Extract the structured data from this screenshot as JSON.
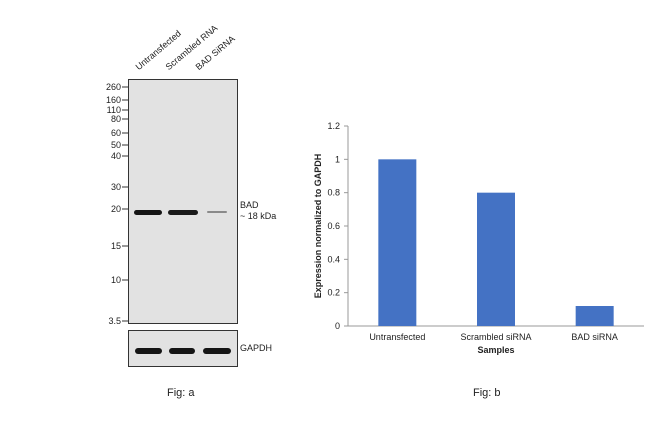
{
  "fig_a": {
    "caption": "Fig: a",
    "lanes": [
      "Untransfected",
      "Scrambled RNA",
      "BAD SiRNA"
    ],
    "markers": [
      "260",
      "160",
      "110",
      "80",
      "60",
      "50",
      "40",
      "30",
      "20",
      "15",
      "10",
      "3.5"
    ],
    "band_label_line1": "BAD",
    "band_label_line2": "~ 18 kDa",
    "control_label": "GAPDH",
    "band_intensity": [
      1.0,
      0.8,
      0.12
    ],
    "control_intensity": [
      1.0,
      1.0,
      1.0
    ]
  },
  "fig_b": {
    "caption": "Fig: b"
  },
  "chart_data": {
    "type": "bar",
    "categories": [
      "Untransfected",
      "Scrambled siRNA",
      "BAD siRNA"
    ],
    "values": [
      1.0,
      0.8,
      0.12
    ],
    "title": "",
    "xlabel": "Samples",
    "ylabel": "Expression normalized to GAPDH",
    "ylim": [
      0,
      1.2
    ],
    "yticks": [
      "0",
      "0.2",
      "0.4",
      "0.6",
      "0.8",
      "1",
      "1.2"
    ],
    "bar_color": "#4472c4",
    "grid": false,
    "legend": "none"
  }
}
